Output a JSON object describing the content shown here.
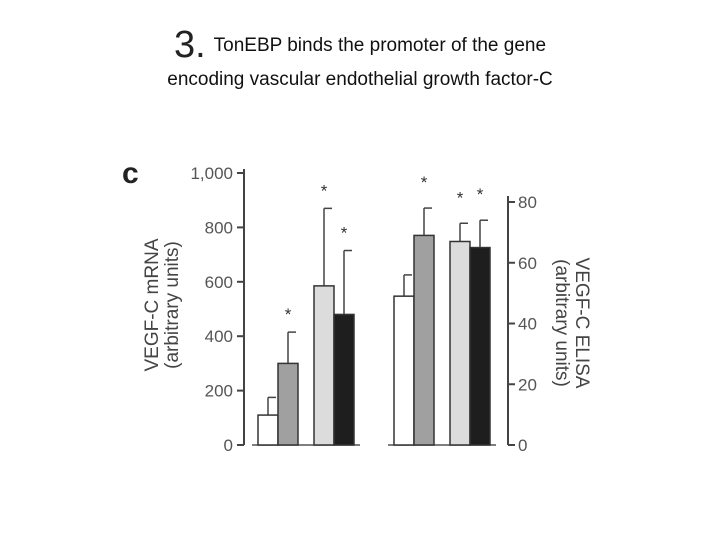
{
  "slide": {
    "number": "3.",
    "title_line1": "TonEBP binds the promoter of the gene",
    "title_line2": "encoding vascular endothelial growth factor-C"
  },
  "chart_data": {
    "type": "bar",
    "panel_label": "c",
    "colors": [
      "#ffffff",
      "#a0a0a0",
      "#dcdcdc",
      "#1e1e1e"
    ],
    "left": {
      "ylabel_line1": "VEGF-C mRNA",
      "ylabel_line2": "(arbitrary units)",
      "ylim": [
        0,
        1000
      ],
      "yticks": [
        "0",
        "200",
        "400",
        "600",
        "800",
        "1,000"
      ],
      "values": [
        110,
        300,
        585,
        480
      ],
      "errors": [
        65,
        115,
        285,
        235
      ],
      "significance": [
        "",
        "*",
        "*",
        "*"
      ]
    },
    "right": {
      "ylabel_line1": "VEGF-C ELISA",
      "ylabel_line2": "(arbitrary units)",
      "ylim": [
        0,
        80
      ],
      "yticks": [
        "0",
        "20",
        "40",
        "60",
        "80"
      ],
      "values": [
        49,
        69,
        67,
        65
      ],
      "errors": [
        7,
        9,
        6,
        9
      ],
      "significance": [
        "",
        "*",
        "*",
        "*"
      ]
    }
  }
}
